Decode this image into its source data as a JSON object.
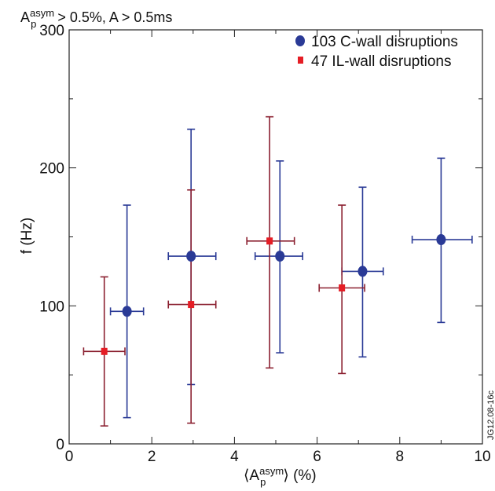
{
  "chart_data": {
    "type": "scatter",
    "annotation": {
      "prefix": "A",
      "sup": "asym",
      "sub": "p",
      "suffix": " > 0.5%, A > 0.5ms"
    },
    "xlabel": {
      "open": "⟨A",
      "sup": "asym",
      "sub": "p",
      "close": "⟩ (%)"
    },
    "ylabel": "f (Hz)",
    "xlim": [
      0,
      10
    ],
    "ylim": [
      0,
      300
    ],
    "xticks": [
      "0",
      "2",
      "4",
      "6",
      "8",
      "10"
    ],
    "yticks": [
      "0",
      "100",
      "200",
      "300"
    ],
    "grid": false,
    "legend_position": "top-right",
    "figure_tag": "JG12.08-16c",
    "series": [
      {
        "name": "103 C-wall disruptions",
        "marker": "circle",
        "color": "#2a3a96",
        "points": [
          {
            "x": 1.4,
            "y": 96,
            "xerr": [
              1.0,
              1.8
            ],
            "yerr": [
              19,
              173
            ]
          },
          {
            "x": 2.95,
            "y": 136,
            "xerr": [
              2.4,
              3.55
            ],
            "yerr": [
              43,
              228
            ]
          },
          {
            "x": 5.1,
            "y": 136,
            "xerr": [
              4.5,
              5.65
            ],
            "yerr": [
              66,
              205
            ]
          },
          {
            "x": 7.1,
            "y": 125,
            "xerr": [
              6.6,
              7.6
            ],
            "yerr": [
              63,
              186
            ]
          },
          {
            "x": 9.0,
            "y": 148,
            "xerr": [
              8.3,
              9.75
            ],
            "yerr": [
              88,
              207
            ]
          }
        ]
      },
      {
        "name": "47 IL-wall disruptions",
        "marker": "square",
        "color": "#e51d25",
        "error_color": "#8b2030",
        "points": [
          {
            "x": 0.85,
            "y": 67,
            "xerr": [
              0.35,
              1.35
            ],
            "yerr": [
              13,
              121
            ]
          },
          {
            "x": 2.95,
            "y": 101,
            "xerr": [
              2.4,
              3.55
            ],
            "yerr": [
              15,
              184
            ]
          },
          {
            "x": 4.85,
            "y": 147,
            "xerr": [
              4.3,
              5.45
            ],
            "yerr": [
              55,
              237
            ]
          },
          {
            "x": 6.6,
            "y": 113,
            "xerr": [
              6.05,
              7.15
            ],
            "yerr": [
              51,
              173
            ]
          }
        ]
      }
    ]
  }
}
